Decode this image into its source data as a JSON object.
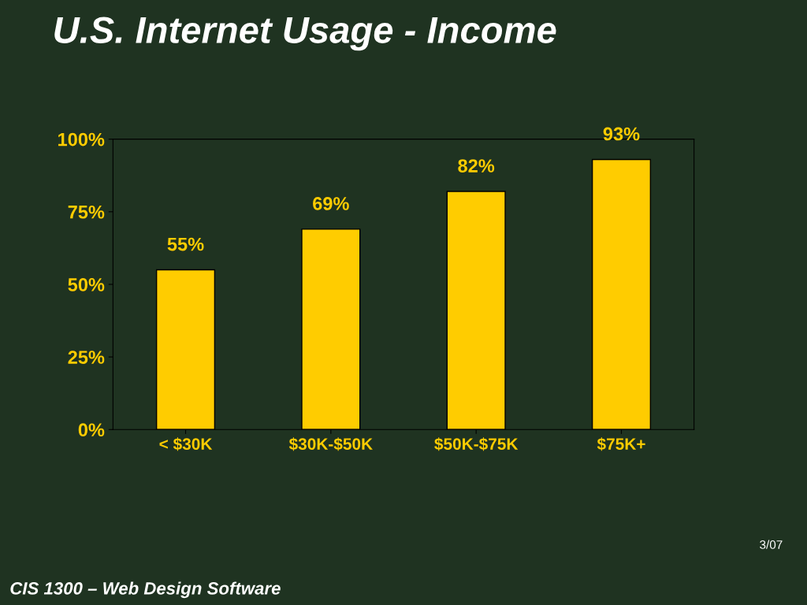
{
  "chart_data": {
    "type": "bar",
    "title": "U.S. Internet Usage - Income",
    "categories": [
      "< $30K",
      "$30K-$50K",
      "$50K-$75K",
      "$75K+"
    ],
    "values": [
      55,
      69,
      82,
      93
    ],
    "value_labels": [
      "55%",
      "69%",
      "82%",
      "93%"
    ],
    "color": "#ffcc00",
    "ylim": [
      0,
      100
    ],
    "yticks": [
      {
        "value": 0,
        "label": "0%"
      },
      {
        "value": 25,
        "label": "25%"
      },
      {
        "value": 50,
        "label": "50%"
      },
      {
        "value": 75,
        "label": "75%"
      },
      {
        "value": 100,
        "label": "100%"
      }
    ],
    "grid": false,
    "annotations": [
      "3/07",
      "CIS 1300 – Web Design Software"
    ]
  }
}
